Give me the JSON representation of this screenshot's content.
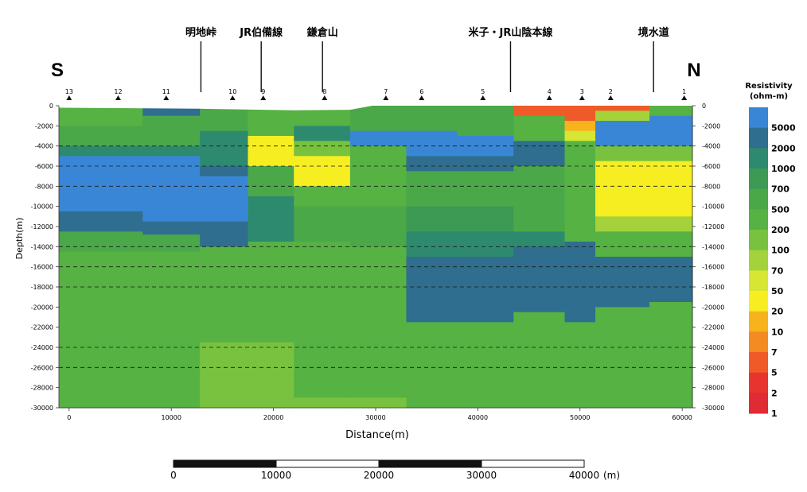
{
  "chart_data": {
    "type": "heatmap",
    "title": "",
    "direction_left": "S",
    "direction_right": "N",
    "xlabel": "Distance(m)",
    "ylabel": "Depth(m)",
    "xlim": [
      -1000,
      61000
    ],
    "ylim": [
      0,
      -30000
    ],
    "x_ticks": [
      0,
      10000,
      20000,
      30000,
      40000,
      50000,
      60000
    ],
    "y_ticks": [
      0,
      -2000,
      -4000,
      -6000,
      -8000,
      -10000,
      -12000,
      -14000,
      -16000,
      -18000,
      -20000,
      -22000,
      -24000,
      -26000,
      -28000,
      -30000
    ],
    "dashed_depths": [
      -4000,
      -6000,
      -8000,
      -14000,
      -16000,
      -18000,
      -24000,
      -26000
    ],
    "stations": [
      {
        "label": "13",
        "x": 0
      },
      {
        "label": "12",
        "x": 4800
      },
      {
        "label": "11",
        "x": 9500
      },
      {
        "label": "10",
        "x": 16000
      },
      {
        "label": "9",
        "x": 19000
      },
      {
        "label": "8",
        "x": 25000
      },
      {
        "label": "7",
        "x": 31000
      },
      {
        "label": "6",
        "x": 34500
      },
      {
        "label": "5",
        "x": 40500
      },
      {
        "label": "4",
        "x": 47000
      },
      {
        "label": "3",
        "x": 50200
      },
      {
        "label": "2",
        "x": 53000
      },
      {
        "label": "1",
        "x": 60200
      }
    ],
    "places": [
      {
        "name": "明地峠",
        "x": 12900
      },
      {
        "name": "JR伯備線",
        "x": 18800
      },
      {
        "name": "鎌倉山",
        "x": 24800
      },
      {
        "name": "米子・JR山陰本線",
        "x": 43200
      },
      {
        "name": "境水道",
        "x": 57200
      }
    ],
    "colorbar": {
      "title_line1": "Resistivity",
      "title_line2": "(ohm-m)",
      "levels": [
        {
          "label": "5000",
          "color": "#3a86d6"
        },
        {
          "label": "2000",
          "color": "#2f6e8e"
        },
        {
          "label": "1000",
          "color": "#2e8a6e"
        },
        {
          "label": "700",
          "color": "#3c9a54"
        },
        {
          "label": "500",
          "color": "#4aa848"
        },
        {
          "label": "200",
          "color": "#56b243"
        },
        {
          "label": "100",
          "color": "#78c23f"
        },
        {
          "label": "70",
          "color": "#a3d23a"
        },
        {
          "label": "50",
          "color": "#d6e632"
        },
        {
          "label": "20",
          "color": "#f7ee22"
        },
        {
          "label": "10",
          "color": "#f6b31c"
        },
        {
          "label": "7",
          "color": "#f48a22"
        },
        {
          "label": "5",
          "color": "#f05a28"
        },
        {
          "label": "2",
          "color": "#e8342e"
        },
        {
          "label": "1",
          "color": "#e02a34"
        }
      ]
    },
    "columns": [
      {
        "x0": -1000,
        "x1": 2500,
        "bands": [
          [
            0,
            -2000,
            "200"
          ],
          [
            -2000,
            -4000,
            "500"
          ],
          [
            -4000,
            -5000,
            "1000"
          ],
          [
            -5000,
            -10500,
            "5000"
          ],
          [
            -10500,
            -12500,
            "2000"
          ],
          [
            -12500,
            -14500,
            "500"
          ],
          [
            -14500,
            -30000,
            "200"
          ]
        ]
      },
      {
        "x0": 2500,
        "x1": 7200,
        "bands": [
          [
            0,
            -2000,
            "200"
          ],
          [
            -2000,
            -4000,
            "500"
          ],
          [
            -4000,
            -5000,
            "1000"
          ],
          [
            -5000,
            -10500,
            "5000"
          ],
          [
            -10500,
            -12500,
            "2000"
          ],
          [
            -12500,
            -14500,
            "500"
          ],
          [
            -14500,
            -30000,
            "200"
          ]
        ]
      },
      {
        "x0": 7200,
        "x1": 12800,
        "bands": [
          [
            0,
            -1000,
            "2000"
          ],
          [
            -1000,
            -4000,
            "500"
          ],
          [
            -4000,
            -5000,
            "1000"
          ],
          [
            -5000,
            -11500,
            "5000"
          ],
          [
            -11500,
            -12800,
            "2000"
          ],
          [
            -12800,
            -14500,
            "500"
          ],
          [
            -14500,
            -30000,
            "200"
          ]
        ]
      },
      {
        "x0": 12800,
        "x1": 17500,
        "bands": [
          [
            0,
            -2500,
            "500"
          ],
          [
            -2500,
            -6000,
            "1000"
          ],
          [
            -6000,
            -7000,
            "2000"
          ],
          [
            -7000,
            -11500,
            "5000"
          ],
          [
            -11500,
            -14000,
            "2000"
          ],
          [
            -14000,
            -23500,
            "200"
          ],
          [
            -23500,
            -30000,
            "100"
          ]
        ]
      },
      {
        "x0": 17500,
        "x1": 22000,
        "bands": [
          [
            0,
            -3000,
            "200"
          ],
          [
            -3000,
            -6000,
            "20"
          ],
          [
            -6000,
            -9000,
            "500"
          ],
          [
            -9000,
            -13500,
            "1000"
          ],
          [
            -13500,
            -23500,
            "200"
          ],
          [
            -23500,
            -30000,
            "100"
          ]
        ]
      },
      {
        "x0": 22000,
        "x1": 27500,
        "bands": [
          [
            0,
            -2000,
            "200"
          ],
          [
            -2000,
            -3500,
            "1000"
          ],
          [
            -3500,
            -5000,
            "100"
          ],
          [
            -5000,
            -8000,
            "20"
          ],
          [
            -8000,
            -10000,
            "200"
          ],
          [
            -10000,
            -13500,
            "500"
          ],
          [
            -13500,
            -29000,
            "200"
          ],
          [
            -29000,
            -30000,
            "100"
          ]
        ]
      },
      {
        "x0": 27500,
        "x1": 33000,
        "bands": [
          [
            0,
            -2500,
            "500"
          ],
          [
            -2500,
            -4000,
            "5000"
          ],
          [
            -4000,
            -10000,
            "200"
          ],
          [
            -10000,
            -14000,
            "500"
          ],
          [
            -14000,
            -29000,
            "200"
          ],
          [
            -29000,
            -30000,
            "100"
          ]
        ]
      },
      {
        "x0": 33000,
        "x1": 38000,
        "bands": [
          [
            0,
            -2500,
            "500"
          ],
          [
            -2500,
            -5000,
            "5000"
          ],
          [
            -5000,
            -6500,
            "2000"
          ],
          [
            -6500,
            -10000,
            "500"
          ],
          [
            -10000,
            -12500,
            "700"
          ],
          [
            -12500,
            -15000,
            "1000"
          ],
          [
            -15000,
            -21500,
            "2000"
          ],
          [
            -21500,
            -30000,
            "200"
          ]
        ]
      },
      {
        "x0": 38000,
        "x1": 43500,
        "bands": [
          [
            0,
            -3000,
            "500"
          ],
          [
            -3000,
            -5000,
            "5000"
          ],
          [
            -5000,
            -6500,
            "2000"
          ],
          [
            -6500,
            -10000,
            "500"
          ],
          [
            -10000,
            -12500,
            "700"
          ],
          [
            -12500,
            -15000,
            "1000"
          ],
          [
            -15000,
            -21500,
            "2000"
          ],
          [
            -21500,
            -30000,
            "200"
          ]
        ]
      },
      {
        "x0": 43500,
        "x1": 48500,
        "bands": [
          [
            0,
            -1000,
            "5"
          ],
          [
            -1000,
            -3500,
            "200"
          ],
          [
            -3500,
            -6000,
            "2000"
          ],
          [
            -6000,
            -12500,
            "500"
          ],
          [
            -12500,
            -14000,
            "1000"
          ],
          [
            -14000,
            -20500,
            "2000"
          ],
          [
            -20500,
            -30000,
            "200"
          ]
        ]
      },
      {
        "x0": 48500,
        "x1": 51500,
        "bands": [
          [
            0,
            -1500,
            "5"
          ],
          [
            -1500,
            -2500,
            "10"
          ],
          [
            -2500,
            -3500,
            "50"
          ],
          [
            -3500,
            -13500,
            "200"
          ],
          [
            -13500,
            -21500,
            "2000"
          ],
          [
            -21500,
            -30000,
            "200"
          ]
        ]
      },
      {
        "x0": 51500,
        "x1": 56800,
        "bands": [
          [
            0,
            -500,
            "5"
          ],
          [
            -500,
            -1500,
            "70"
          ],
          [
            -1500,
            -4000,
            "5000"
          ],
          [
            -4000,
            -5500,
            "100"
          ],
          [
            -5500,
            -11000,
            "20"
          ],
          [
            -11000,
            -12500,
            "70"
          ],
          [
            -12500,
            -15000,
            "200"
          ],
          [
            -15000,
            -20000,
            "2000"
          ],
          [
            -20000,
            -30000,
            "200"
          ]
        ]
      },
      {
        "x0": 56800,
        "x1": 61000,
        "bands": [
          [
            0,
            -1000,
            "200"
          ],
          [
            -1000,
            -4000,
            "5000"
          ],
          [
            -4000,
            -5500,
            "100"
          ],
          [
            -5500,
            -11000,
            "20"
          ],
          [
            -11000,
            -12500,
            "70"
          ],
          [
            -12500,
            -15000,
            "200"
          ],
          [
            -15000,
            -19500,
            "2000"
          ],
          [
            -19500,
            -30000,
            "200"
          ]
        ]
      }
    ]
  },
  "scale_bar": {
    "labels": [
      "0",
      "10000",
      "20000",
      "30000",
      "40000"
    ],
    "unit": "(m)"
  }
}
